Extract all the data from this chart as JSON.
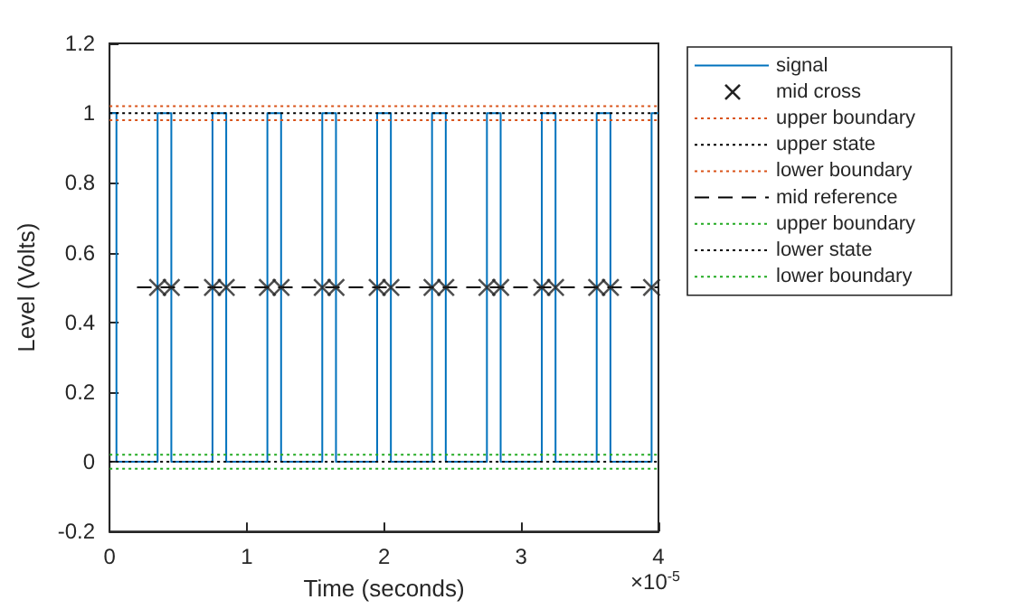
{
  "chart_data": {
    "type": "line",
    "xlabel": "Time (seconds)",
    "ylabel": "Level (Volts)",
    "annotations": [
      "×10$^{-5}$"
    ],
    "xlim": [
      0,
      4
    ],
    "xticks": [
      0,
      1,
      2,
      3,
      4
    ],
    "ylim": [
      -0.2,
      1.2
    ],
    "yticks": [
      -0.2,
      0,
      0.2,
      0.4,
      0.6,
      0.8,
      1,
      1.2
    ],
    "grid": false,
    "legend": "right",
    "series": [
      {
        "name": "signal",
        "color": "#0072bd",
        "line_style": "solid",
        "marker": "none",
        "x": [
          0,
          0.05,
          0.05,
          0.35,
          0.35,
          0.45,
          0.45,
          0.75,
          0.75,
          0.85,
          0.85,
          1.15,
          1.15,
          1.25,
          1.25,
          1.55,
          1.55,
          1.65,
          1.65,
          1.95,
          1.95,
          2.05,
          2.05,
          2.35,
          2.35,
          2.45,
          2.45,
          2.75,
          2.75,
          2.85,
          2.85,
          3.15,
          3.15,
          3.25,
          3.25,
          3.55,
          3.55,
          3.65,
          3.65,
          3.95,
          3.95,
          4
        ],
        "values": [
          1,
          1,
          0,
          0,
          1,
          1,
          0,
          0,
          1,
          1,
          0,
          0,
          1,
          1,
          0,
          0,
          1,
          1,
          0,
          0,
          1,
          1,
          0,
          0,
          1,
          1,
          0,
          0,
          1,
          1,
          0,
          0,
          1,
          1,
          0,
          0,
          1,
          1,
          0,
          0,
          1,
          1
        ]
      },
      {
        "name": "mid cross",
        "type": "scatter",
        "color": "#222222",
        "marker": "cross",
        "x": [
          0.35,
          0.45,
          0.75,
          0.85,
          1.15,
          1.25,
          1.55,
          1.65,
          1.95,
          2.05,
          2.35,
          2.45,
          2.75,
          2.85,
          3.15,
          3.25,
          3.55,
          3.65,
          3.95
        ],
        "values": [
          0.5,
          0.5,
          0.5,
          0.5,
          0.5,
          0.5,
          0.5,
          0.5,
          0.5,
          0.5,
          0.5,
          0.5,
          0.5,
          0.5,
          0.5,
          0.5,
          0.5,
          0.5,
          0.5
        ]
      },
      {
        "name": "upper boundary",
        "type": "line",
        "color": "#d95319",
        "line_style": "dotted",
        "marker": "none",
        "x": [
          0,
          4
        ],
        "values": [
          1.02,
          1.02
        ]
      },
      {
        "name": "upper state",
        "type": "line",
        "color": "#000000",
        "line_style": "dotted",
        "marker": "none",
        "x": [
          0,
          4
        ],
        "values": [
          1,
          1
        ]
      },
      {
        "name": "lower boundary",
        "type": "line",
        "color": "#d95319",
        "line_style": "dotted",
        "marker": "none",
        "x": [
          0,
          4
        ],
        "values": [
          0.98,
          0.98
        ]
      },
      {
        "name": "mid reference",
        "type": "line",
        "color": "#000000",
        "line_style": "dashed",
        "marker": "none",
        "x": [
          0.2,
          4
        ],
        "values": [
          0.5,
          0.5
        ]
      },
      {
        "name": "upper boundary",
        "type": "line",
        "color": "#22aa22",
        "line_style": "dotted",
        "marker": "none",
        "x": [
          0,
          4
        ],
        "values": [
          0.02,
          0.02
        ]
      },
      {
        "name": "lower state",
        "type": "line",
        "color": "#000000",
        "line_style": "dotted",
        "marker": "none",
        "x": [
          0,
          4
        ],
        "values": [
          0,
          0
        ]
      },
      {
        "name": "lower boundary",
        "type": "line",
        "color": "#22aa22",
        "line_style": "dotted",
        "marker": "none",
        "x": [
          0,
          4
        ],
        "values": [
          -0.02,
          -0.02
        ]
      }
    ]
  }
}
